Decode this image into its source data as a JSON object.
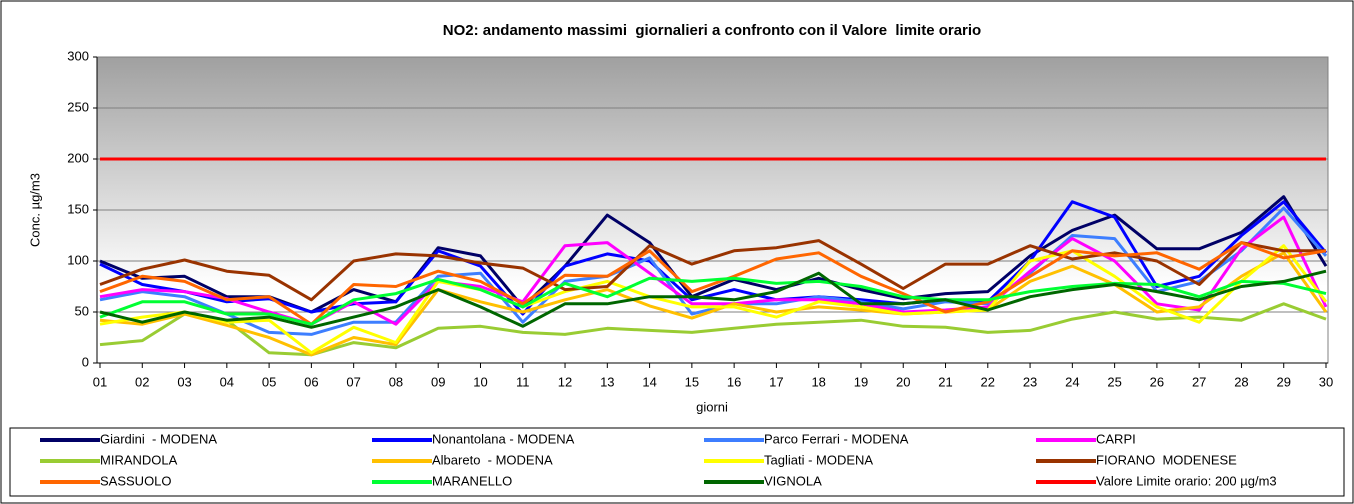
{
  "chart_data": {
    "type": "line",
    "title": "NO2: andamento massimi  giornalieri a confronto con il Valore  limite orario",
    "y_label": "Conc. µg/m3",
    "x_label": "giorni",
    "categories": [
      "01",
      "02",
      "03",
      "04",
      "05",
      "06",
      "07",
      "08",
      "09",
      "10",
      "11",
      "12",
      "13",
      "14",
      "15",
      "16",
      "17",
      "18",
      "19",
      "20",
      "21",
      "22",
      "23",
      "24",
      "25",
      "26",
      "27",
      "28",
      "29",
      "30"
    ],
    "ylim": [
      0,
      300
    ],
    "yticks": [
      0,
      50,
      100,
      150,
      200,
      250,
      300
    ],
    "grid": true,
    "legend": "bottom",
    "series": [
      {
        "name": "Giardini  - MODENA",
        "color": "#000066",
        "values": [
          100,
          83,
          85,
          65,
          65,
          50,
          72,
          60,
          113,
          105,
          55,
          95,
          145,
          118,
          65,
          82,
          72,
          83,
          72,
          63,
          68,
          70,
          105,
          130,
          145,
          112,
          112,
          128,
          163,
          95
        ]
      },
      {
        "name": "Nonantolana - MODENA",
        "color": "#0000ff",
        "values": [
          97,
          77,
          70,
          60,
          63,
          50,
          58,
          60,
          110,
          95,
          48,
          95,
          107,
          100,
          62,
          72,
          62,
          65,
          62,
          58,
          62,
          60,
          100,
          158,
          143,
          75,
          85,
          125,
          158,
          108
        ]
      },
      {
        "name": "Parco Ferrari - MODENA",
        "color": "#3d7eff",
        "values": [
          62,
          70,
          65,
          48,
          30,
          28,
          40,
          40,
          85,
          88,
          40,
          80,
          85,
          103,
          48,
          58,
          58,
          65,
          60,
          53,
          60,
          58,
          88,
          125,
          122,
          70,
          80,
          110,
          152,
          105
        ]
      },
      {
        "name": "CARPI",
        "color": "#ff00ff",
        "values": [
          65,
          72,
          70,
          63,
          50,
          38,
          60,
          38,
          80,
          75,
          60,
          115,
          118,
          88,
          58,
          58,
          62,
          62,
          58,
          50,
          52,
          55,
          90,
          122,
          100,
          58,
          52,
          112,
          143,
          55
        ]
      },
      {
        "name": "MIRANDOLA",
        "color": "#99cc33",
        "values": [
          18,
          22,
          48,
          42,
          10,
          8,
          20,
          15,
          34,
          36,
          30,
          28,
          34,
          32,
          30,
          34,
          38,
          40,
          42,
          36,
          35,
          30,
          32,
          43,
          50,
          43,
          45,
          42,
          58,
          43
        ]
      },
      {
        "name": "Albareto  - MODENA",
        "color": "#ffc000",
        "values": [
          42,
          38,
          48,
          37,
          25,
          8,
          25,
          18,
          72,
          60,
          50,
          62,
          72,
          56,
          44,
          58,
          50,
          55,
          52,
          48,
          50,
          52,
          80,
          95,
          77,
          50,
          55,
          85,
          108,
          50
        ]
      },
      {
        "name": "Tagliati - MODENA",
        "color": "#ffff00",
        "values": [
          38,
          45,
          50,
          40,
          42,
          10,
          35,
          20,
          80,
          72,
          55,
          70,
          80,
          65,
          55,
          55,
          45,
          60,
          55,
          48,
          50,
          52,
          100,
          110,
          85,
          55,
          40,
          80,
          115,
          60
        ]
      },
      {
        "name": "FIORANO  MODENESE",
        "color": "#993300",
        "values": [
          77,
          92,
          101,
          90,
          86,
          62,
          100,
          107,
          105,
          98,
          93,
          72,
          75,
          115,
          97,
          110,
          113,
          120,
          97,
          73,
          97,
          97,
          115,
          102,
          108,
          100,
          77,
          118,
          110,
          110
        ]
      },
      {
        "name": "SASSUOLO",
        "color": "#ff6600",
        "values": [
          70,
          85,
          80,
          62,
          65,
          38,
          77,
          75,
          90,
          80,
          58,
          86,
          85,
          110,
          70,
          85,
          102,
          108,
          85,
          68,
          50,
          60,
          85,
          110,
          105,
          108,
          92,
          118,
          103,
          110
        ]
      },
      {
        "name": "MARANELLO",
        "color": "#00ff33",
        "values": [
          45,
          60,
          60,
          48,
          48,
          38,
          62,
          68,
          82,
          72,
          55,
          78,
          65,
          83,
          80,
          83,
          78,
          80,
          75,
          65,
          62,
          62,
          70,
          75,
          78,
          77,
          65,
          80,
          78,
          68
        ]
      },
      {
        "name": "VIGNOLA",
        "color": "#006600",
        "values": [
          50,
          40,
          50,
          42,
          45,
          35,
          45,
          55,
          72,
          55,
          36,
          58,
          58,
          65,
          65,
          62,
          70,
          88,
          58,
          58,
          62,
          52,
          65,
          72,
          77,
          70,
          62,
          75,
          80,
          90
        ]
      },
      {
        "name": "Valore Limite orario: 200 µg/m3",
        "color": "#ff0000",
        "values": [
          200,
          200,
          200,
          200,
          200,
          200,
          200,
          200,
          200,
          200,
          200,
          200,
          200,
          200,
          200,
          200,
          200,
          200,
          200,
          200,
          200,
          200,
          200,
          200,
          200,
          200,
          200,
          200,
          200,
          200
        ]
      }
    ]
  }
}
